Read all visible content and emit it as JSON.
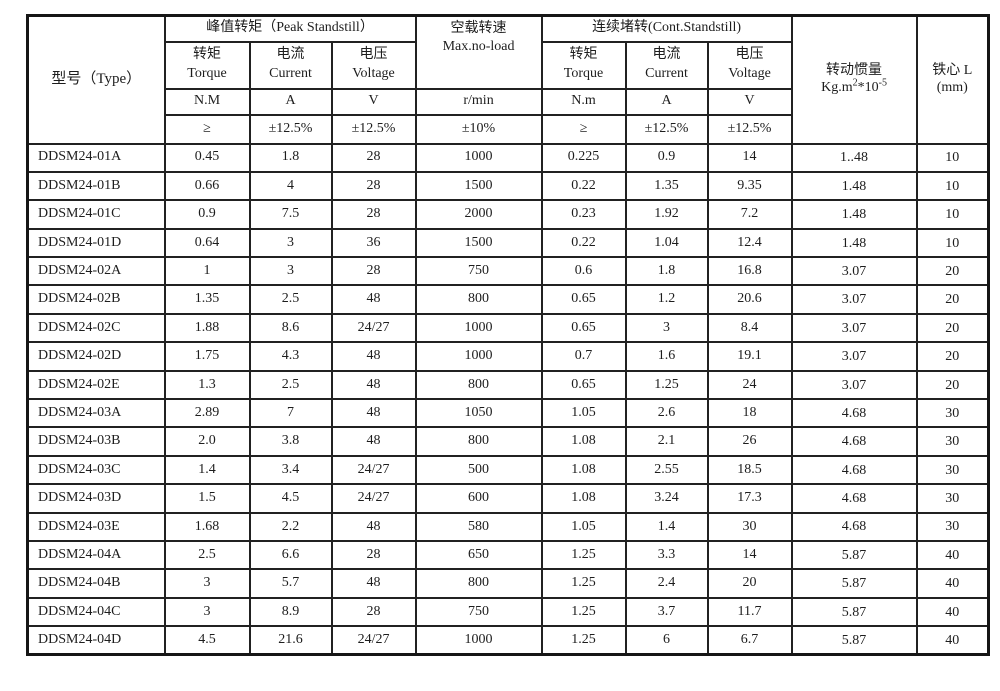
{
  "page": {
    "background": "#ffffff",
    "text_color": "#1d1d1d",
    "border_color": "#212121"
  },
  "table": {
    "header": {
      "type_label": "型号（Type）",
      "peak_group": "峰值转矩（Peak Standstill）",
      "noload_line1": "空载转速",
      "noload_line2": "Max.no-load",
      "cont_group": "连续堵转(Cont.Standstill)",
      "inertia_title": "转动惯量",
      "inertia_unit": {
        "p1": "Kg.m",
        "s1": "2",
        "p2": "*10",
        "s2": "-5"
      },
      "core_line1": "铁心 L",
      "core_line2": "(mm)",
      "sub": {
        "torque_cn": "转矩",
        "torque_en": "Torque",
        "current_cn": "电流",
        "current_en": "Current",
        "voltage_cn": "电压",
        "voltage_en": "Voltage"
      },
      "units": {
        "peak_torque": "N.M",
        "current": "A",
        "voltage": "V",
        "speed": "r/min",
        "cont_torque": "N.m"
      },
      "tol": {
        "gte": "≥",
        "pct125": "±12.5%",
        "pct10": "±10%"
      }
    },
    "rows": [
      {
        "type": "DDSM24-01A",
        "peak_torque": "0.45",
        "peak_current": "1.8",
        "peak_voltage": "28",
        "speed": "1000",
        "cont_torque": "0.225",
        "cont_current": "0.9",
        "cont_voltage": "14",
        "inertia": "1..48",
        "core": "10"
      },
      {
        "type": "DDSM24-01B",
        "peak_torque": "0.66",
        "peak_current": "4",
        "peak_voltage": "28",
        "speed": "1500",
        "cont_torque": "0.22",
        "cont_current": "1.35",
        "cont_voltage": "9.35",
        "inertia": "1.48",
        "core": "10"
      },
      {
        "type": "DDSM24-01C",
        "peak_torque": "0.9",
        "peak_current": "7.5",
        "peak_voltage": "28",
        "speed": "2000",
        "cont_torque": "0.23",
        "cont_current": "1.92",
        "cont_voltage": "7.2",
        "inertia": "1.48",
        "core": "10"
      },
      {
        "type": "DDSM24-01D",
        "peak_torque": "0.64",
        "peak_current": "3",
        "peak_voltage": "36",
        "speed": "1500",
        "cont_torque": "0.22",
        "cont_current": "1.04",
        "cont_voltage": "12.4",
        "inertia": "1.48",
        "core": "10"
      },
      {
        "type": "DDSM24-02A",
        "peak_torque": "1",
        "peak_current": "3",
        "peak_voltage": "28",
        "speed": "750",
        "cont_torque": "0.6",
        "cont_current": "1.8",
        "cont_voltage": "16.8",
        "inertia": "3.07",
        "core": "20"
      },
      {
        "type": "DDSM24-02B",
        "peak_torque": "1.35",
        "peak_current": "2.5",
        "peak_voltage": "48",
        "speed": "800",
        "cont_torque": "0.65",
        "cont_current": "1.2",
        "cont_voltage": "20.6",
        "inertia": "3.07",
        "core": "20"
      },
      {
        "type": "DDSM24-02C",
        "peak_torque": "1.88",
        "peak_current": "8.6",
        "peak_voltage": "24/27",
        "speed": "1000",
        "cont_torque": "0.65",
        "cont_current": "3",
        "cont_voltage": "8.4",
        "inertia": "3.07",
        "core": "20"
      },
      {
        "type": "DDSM24-02D",
        "peak_torque": "1.75",
        "peak_current": "4.3",
        "peak_voltage": "48",
        "speed": "1000",
        "cont_torque": "0.7",
        "cont_current": "1.6",
        "cont_voltage": "19.1",
        "inertia": "3.07",
        "core": "20"
      },
      {
        "type": "DDSM24-02E",
        "peak_torque": "1.3",
        "peak_current": "2.5",
        "peak_voltage": "48",
        "speed": "800",
        "cont_torque": "0.65",
        "cont_current": "1.25",
        "cont_voltage": "24",
        "inertia": "3.07",
        "core": "20"
      },
      {
        "type": "DDSM24-03A",
        "peak_torque": "2.89",
        "peak_current": "7",
        "peak_voltage": "48",
        "speed": "1050",
        "cont_torque": "1.05",
        "cont_current": "2.6",
        "cont_voltage": "18",
        "inertia": "4.68",
        "core": "30"
      },
      {
        "type": "DDSM24-03B",
        "peak_torque": "2.0",
        "peak_current": "3.8",
        "peak_voltage": "48",
        "speed": "800",
        "cont_torque": "1.08",
        "cont_current": "2.1",
        "cont_voltage": "26",
        "inertia": "4.68",
        "core": "30"
      },
      {
        "type": "DDSM24-03C",
        "peak_torque": "1.4",
        "peak_current": "3.4",
        "peak_voltage": "24/27",
        "speed": "500",
        "cont_torque": "1.08",
        "cont_current": "2.55",
        "cont_voltage": "18.5",
        "inertia": "4.68",
        "core": "30"
      },
      {
        "type": "DDSM24-03D",
        "peak_torque": "1.5",
        "peak_current": "4.5",
        "peak_voltage": "24/27",
        "speed": "600",
        "cont_torque": "1.08",
        "cont_current": "3.24",
        "cont_voltage": "17.3",
        "inertia": "4.68",
        "core": "30"
      },
      {
        "type": "DDSM24-03E",
        "peak_torque": "1.68",
        "peak_current": "2.2",
        "peak_voltage": "48",
        "speed": "580",
        "cont_torque": "1.05",
        "cont_current": "1.4",
        "cont_voltage": "30",
        "inertia": "4.68",
        "core": "30"
      },
      {
        "type": "DDSM24-04A",
        "peak_torque": "2.5",
        "peak_current": "6.6",
        "peak_voltage": "28",
        "speed": "650",
        "cont_torque": "1.25",
        "cont_current": "3.3",
        "cont_voltage": "14",
        "inertia": "5.87",
        "core": "40"
      },
      {
        "type": "DDSM24-04B",
        "peak_torque": "3",
        "peak_current": "5.7",
        "peak_voltage": "48",
        "speed": "800",
        "cont_torque": "1.25",
        "cont_current": "2.4",
        "cont_voltage": "20",
        "inertia": "5.87",
        "core": "40"
      },
      {
        "type": "DDSM24-04C",
        "peak_torque": "3",
        "peak_current": "8.9",
        "peak_voltage": "28",
        "speed": "750",
        "cont_torque": "1.25",
        "cont_current": "3.7",
        "cont_voltage": "11.7",
        "inertia": "5.87",
        "core": "40"
      },
      {
        "type": "DDSM24-04D",
        "peak_torque": "4.5",
        "peak_current": "21.6",
        "peak_voltage": "24/27",
        "speed": "1000",
        "cont_torque": "1.25",
        "cont_current": "6",
        "cont_voltage": "6.7",
        "inertia": "5.87",
        "core": "40"
      }
    ]
  }
}
